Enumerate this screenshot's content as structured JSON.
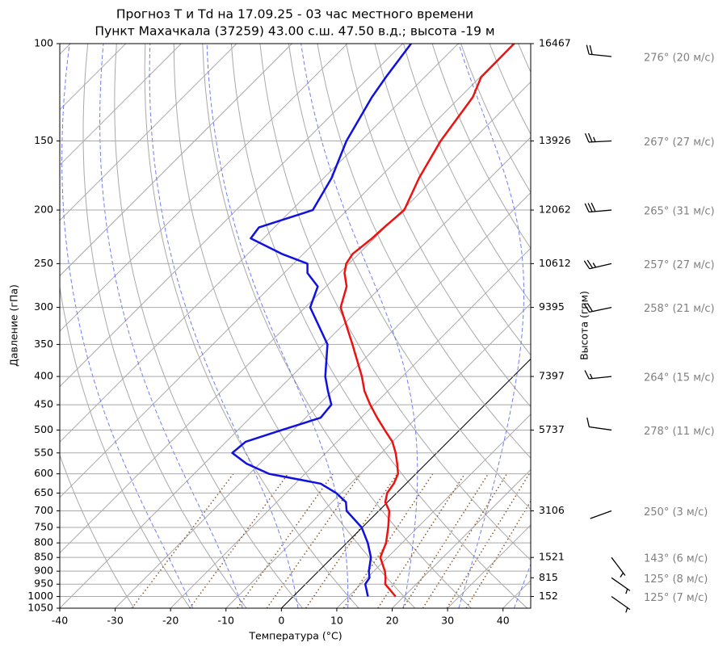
{
  "chart_data": {
    "type": "skewt",
    "title": [
      "Прогноз T и Td на 17.09.25 - 03 час местного времени",
      "Пункт Махачкала (37259) 43.00 с.ш. 47.50 в.д.; высота -19 м"
    ],
    "x_label": "Температура (°C)",
    "y_label": "Давление (гПа)",
    "y2_label": "Высота (гпм)",
    "xlim": [
      -40,
      45
    ],
    "xticks": [
      -40,
      -30,
      -20,
      -10,
      0,
      10,
      20,
      30,
      40
    ],
    "ylim": [
      1050,
      100
    ],
    "yscale": "log",
    "yticks": [
      100,
      150,
      200,
      250,
      300,
      350,
      400,
      450,
      500,
      550,
      600,
      650,
      700,
      750,
      800,
      850,
      900,
      950,
      1000,
      1050
    ],
    "grid": true,
    "levels": [
      1000,
      950,
      925,
      900,
      850,
      800,
      750,
      700,
      675,
      650,
      625,
      600,
      575,
      550,
      525,
      500,
      475,
      450,
      425,
      400,
      350,
      300,
      275,
      260,
      250,
      240,
      225,
      215,
      200,
      175,
      150,
      125,
      115,
      100
    ],
    "series": [
      {
        "color": "#ee1111",
        "values": [
          18.5,
          14.4,
          13.3,
          12.0,
          8.7,
          7.1,
          4.7,
          1.9,
          -0.4,
          -1.7,
          -2.2,
          -3.2,
          -5.2,
          -7.4,
          -10.0,
          -13.5,
          -17.1,
          -20.7,
          -24.2,
          -27.3,
          -34.8,
          -43.6,
          -46.3,
          -49.1,
          -50.5,
          -51.1,
          -50.4,
          -50.2,
          -49.7,
          -52.8,
          -55.6,
          -57.7,
          -59.8,
          -59.9
        ]
      },
      {
        "color": "#1010e0",
        "values": [
          13.5,
          10.8,
          10.4,
          9.1,
          7.0,
          3.8,
          -0.1,
          -5.8,
          -7.5,
          -10.9,
          -15.4,
          -26.5,
          -32.4,
          -36.9,
          -36.5,
          -32.1,
          -27.3,
          -27.7,
          -30.8,
          -33.9,
          -39.3,
          -49.1,
          -51.5,
          -55.8,
          -57.5,
          -63.9,
          -72.3,
          -72.8,
          -66.2,
          -68.6,
          -72.6,
          -75.9,
          -77.0,
          -78.5
        ]
      }
    ],
    "heights": [
      {
        "pressure": 100,
        "height": 16467
      },
      {
        "pressure": 150,
        "height": 13926
      },
      {
        "pressure": 200,
        "height": 12062
      },
      {
        "pressure": 250,
        "height": 10612
      },
      {
        "pressure": 300,
        "height": 9395
      },
      {
        "pressure": 400,
        "height": 7397
      },
      {
        "pressure": 500,
        "height": 5737
      },
      {
        "pressure": 700,
        "height": 3106
      },
      {
        "pressure": 850,
        "height": 1521
      },
      {
        "pressure": 925,
        "height": 815
      },
      {
        "pressure": 1000,
        "height": 152
      }
    ],
    "winds": [
      {
        "pressure": 100,
        "direction": 276,
        "speed": 20,
        "label": "276° (20 м/с)"
      },
      {
        "pressure": 150,
        "direction": 267,
        "speed": 27,
        "label": "267° (27 м/с)"
      },
      {
        "pressure": 200,
        "direction": 265,
        "speed": 31,
        "label": "265° (31 м/с)"
      },
      {
        "pressure": 250,
        "direction": 257,
        "speed": 27,
        "label": "257° (27 м/с)"
      },
      {
        "pressure": 300,
        "direction": 258,
        "speed": 21,
        "label": "258° (21 м/с)"
      },
      {
        "pressure": 400,
        "direction": 264,
        "speed": 15,
        "label": "264° (15 м/с)"
      },
      {
        "pressure": 500,
        "direction": 278,
        "speed": 11,
        "label": "278° (11 м/с)"
      },
      {
        "pressure": 700,
        "direction": 250,
        "speed": 3,
        "label": "250° (3 м/с)"
      },
      {
        "pressure": 850,
        "direction": 143,
        "speed": 6,
        "label": "143° (6 м/с)"
      },
      {
        "pressure": 925,
        "direction": 125,
        "speed": 8,
        "label": "125° (8 м/с)"
      },
      {
        "pressure": 1000,
        "direction": 125,
        "speed": 7,
        "label": "125° (7 м/с)"
      }
    ]
  }
}
